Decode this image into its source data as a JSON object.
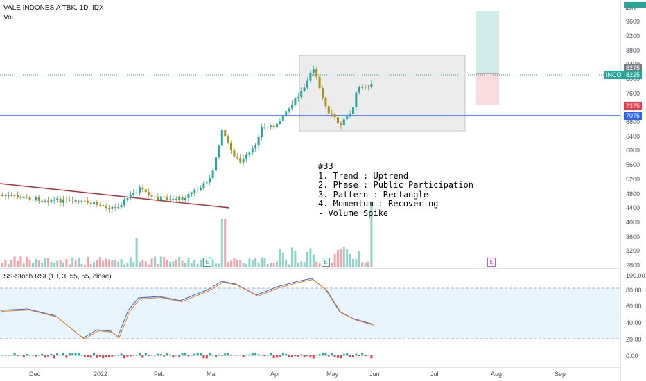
{
  "header": {
    "title": "VALE INDONESIA TBK, 1D, IDX",
    "volume_label": "Vol",
    "currency": "IDR"
  },
  "price_axis": {
    "ticks": [
      "9600",
      "9200",
      "8800",
      "8400",
      "8000",
      "7600",
      "6800",
      "6400",
      "6000",
      "5600",
      "5200",
      "4800",
      "4400",
      "4000",
      "3600",
      "3200",
      "2800"
    ],
    "tags": {
      "target": "8275",
      "symbol": "INCO",
      "last": "8225",
      "stop": "7375",
      "support": "7075"
    }
  },
  "rsi_panel": {
    "title": "SS-Stoch RSI (13, 3, 55, 55, close)",
    "ticks": [
      "100.00",
      "80.00",
      "60.00",
      "40.00",
      "20.00",
      "0.00"
    ]
  },
  "time_axis": {
    "labels": [
      "Dec",
      "2022",
      "Feb",
      "Mar",
      "Apr",
      "May",
      "Jun",
      "Jul",
      "Aug",
      "Sep"
    ]
  },
  "annotation": {
    "lines": [
      "#33",
      "1. Trend : Uptrend",
      "2. Phase : Public Participation",
      "3. Pattern : Rectangle",
      "4. Momentum : Recovering",
      "- Volume Spike"
    ]
  },
  "events": {
    "earnings_marker": "E"
  },
  "colors": {
    "up": "#26a69a",
    "down": "#a89020",
    "support_line": "#2962ff",
    "trend_line": "#b22833",
    "stop_tag": "#f23645",
    "symbol_tag": "#26a69a"
  },
  "chart_data": {
    "type": "candlestick",
    "symbol": "INCO",
    "last_price": 8225,
    "target_price": 8275,
    "stop_price": 7375,
    "support_price": 7075,
    "price_axis_range": [
      2800,
      9800
    ],
    "rsi_range": [
      0,
      100
    ]
  }
}
